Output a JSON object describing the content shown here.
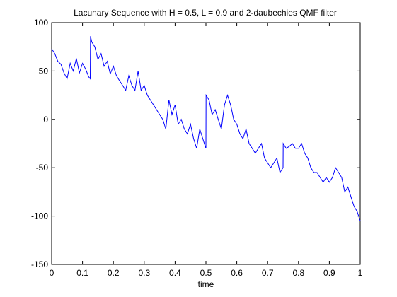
{
  "chart_data": {
    "type": "line",
    "title": "Lacunary Sequence with H = 0.5, L = 0.9 and 2-daubechies QMF filter",
    "xlabel": "time",
    "ylabel": "",
    "xlim": [
      0,
      1
    ],
    "ylim": [
      -150,
      100
    ],
    "xticks": [
      "0",
      "0.1",
      "0.2",
      "0.3",
      "0.4",
      "0.5",
      "0.6",
      "0.7",
      "0.8",
      "0.9",
      "1"
    ],
    "yticks": [
      "100",
      "50",
      "0",
      "-50",
      "-100",
      "-150"
    ],
    "grid": false,
    "line_color": "#0000ff",
    "series": [
      {
        "x": [
          0.0,
          0.01,
          0.02,
          0.03,
          0.04,
          0.05,
          0.06,
          0.07,
          0.08,
          0.09,
          0.1,
          0.11,
          0.12,
          0.125,
          0.126,
          0.13,
          0.14,
          0.15,
          0.16,
          0.17,
          0.18,
          0.19,
          0.2,
          0.21,
          0.22,
          0.23,
          0.24,
          0.25,
          0.26,
          0.27,
          0.28,
          0.29,
          0.3,
          0.31,
          0.32,
          0.33,
          0.34,
          0.35,
          0.36,
          0.37,
          0.38,
          0.39,
          0.4,
          0.41,
          0.42,
          0.43,
          0.44,
          0.45,
          0.46,
          0.47,
          0.48,
          0.49,
          0.5,
          0.5005,
          0.51,
          0.52,
          0.53,
          0.54,
          0.55,
          0.56,
          0.57,
          0.58,
          0.59,
          0.6,
          0.61,
          0.62,
          0.63,
          0.64,
          0.65,
          0.66,
          0.67,
          0.68,
          0.69,
          0.7,
          0.71,
          0.72,
          0.73,
          0.74,
          0.75,
          0.7505,
          0.76,
          0.77,
          0.78,
          0.79,
          0.8,
          0.81,
          0.82,
          0.83,
          0.84,
          0.85,
          0.86,
          0.87,
          0.88,
          0.89,
          0.9,
          0.91,
          0.92,
          0.93,
          0.94,
          0.95,
          0.96,
          0.97,
          0.98,
          0.99,
          1.0
        ],
        "y": [
          73,
          68,
          60,
          57,
          48,
          42,
          58,
          50,
          63,
          48,
          58,
          52,
          44,
          42,
          86,
          80,
          75,
          62,
          68,
          55,
          60,
          47,
          55,
          45,
          40,
          35,
          30,
          45,
          35,
          30,
          50,
          30,
          35,
          25,
          20,
          15,
          10,
          5,
          0,
          -10,
          20,
          5,
          15,
          -5,
          0,
          -10,
          -15,
          -5,
          -20,
          -30,
          -10,
          -20,
          -30,
          25,
          20,
          5,
          10,
          0,
          -10,
          15,
          25,
          15,
          0,
          -5,
          -15,
          -20,
          -10,
          -25,
          -30,
          -35,
          -30,
          -25,
          -40,
          -45,
          -50,
          -45,
          -40,
          -55,
          -50,
          -25,
          -30,
          -28,
          -25,
          -30,
          -30,
          -25,
          -35,
          -40,
          -50,
          -55,
          -55,
          -60,
          -65,
          -60,
          -65,
          -60,
          -50,
          -55,
          -60,
          -75,
          -70,
          -80,
          -90,
          -95,
          -105
        ]
      }
    ]
  }
}
